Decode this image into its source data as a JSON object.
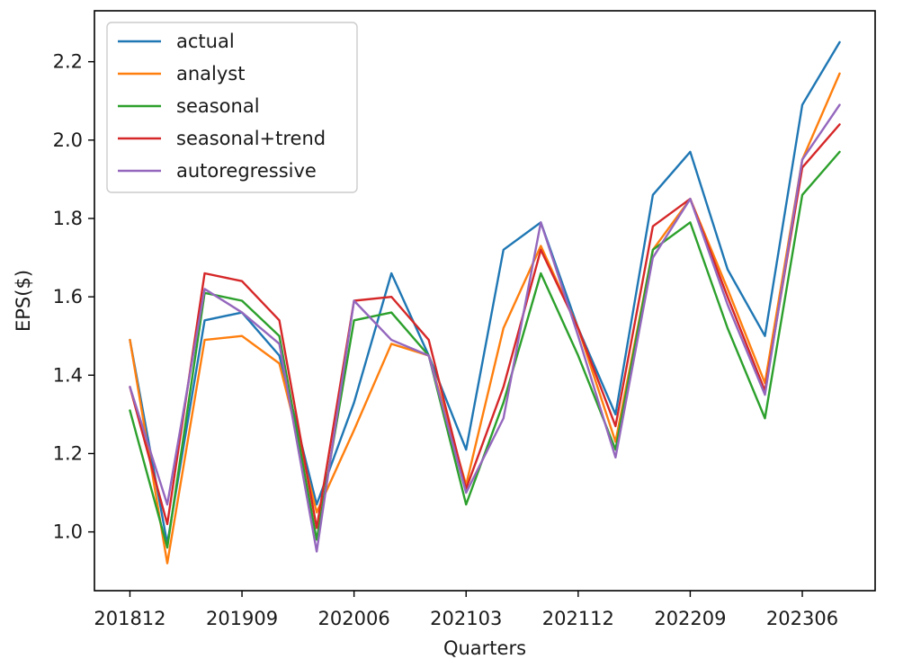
{
  "chart_data": {
    "type": "line",
    "title": "",
    "xlabel": "Quarters",
    "ylabel": "EPS($)",
    "x_tick_labels": [
      "201812",
      "201909",
      "202006",
      "202103",
      "202112",
      "202209",
      "202306"
    ],
    "y_ticks": [
      1.0,
      1.2,
      1.4,
      1.6,
      1.8,
      2.0,
      2.2
    ],
    "y_tick_labels": [
      "1.0",
      "1.2",
      "1.4",
      "1.6",
      "1.8",
      "2.0",
      "2.2"
    ],
    "xlim_index": [
      -0.95,
      19.95
    ],
    "ylim": [
      0.85,
      2.33
    ],
    "grid": false,
    "legend_position": "top-left",
    "categories": [
      "201812",
      "201903",
      "201906",
      "201909",
      "201912",
      "202003",
      "202006",
      "202009",
      "202012",
      "202103",
      "202106",
      "202109",
      "202112",
      "202203",
      "202206",
      "202209",
      "202212",
      "202303",
      "202306",
      "202309"
    ],
    "series": [
      {
        "name": "actual",
        "color": "#1f77b4",
        "values": [
          1.49,
          0.97,
          1.54,
          1.56,
          1.45,
          1.07,
          1.33,
          1.66,
          1.45,
          1.21,
          1.72,
          1.79,
          1.52,
          1.3,
          1.86,
          1.97,
          1.67,
          1.5,
          2.09,
          2.25
        ]
      },
      {
        "name": "analyst",
        "color": "#ff7f0e",
        "values": [
          1.49,
          0.92,
          1.49,
          1.5,
          1.43,
          1.05,
          1.26,
          1.48,
          1.45,
          1.12,
          1.52,
          1.73,
          1.52,
          1.23,
          1.72,
          1.85,
          1.62,
          1.38,
          1.95,
          2.17
        ]
      },
      {
        "name": "seasonal",
        "color": "#2ca02c",
        "values": [
          1.31,
          0.96,
          1.61,
          1.59,
          1.5,
          0.98,
          1.54,
          1.56,
          1.45,
          1.07,
          1.33,
          1.66,
          1.45,
          1.21,
          1.72,
          1.79,
          1.52,
          1.29,
          1.86,
          1.97
        ]
      },
      {
        "name": "seasonal+trend",
        "color": "#d62728",
        "values": [
          1.37,
          1.02,
          1.66,
          1.64,
          1.54,
          1.01,
          1.59,
          1.6,
          1.49,
          1.11,
          1.37,
          1.72,
          1.52,
          1.27,
          1.78,
          1.85,
          1.6,
          1.36,
          1.93,
          2.04
        ]
      },
      {
        "name": "autoregressive",
        "color": "#9467bd",
        "values": [
          1.37,
          1.07,
          1.62,
          1.56,
          1.48,
          0.95,
          1.59,
          1.49,
          1.45,
          1.1,
          1.29,
          1.79,
          1.5,
          1.19,
          1.7,
          1.85,
          1.58,
          1.35,
          1.95,
          2.09
        ]
      }
    ]
  }
}
